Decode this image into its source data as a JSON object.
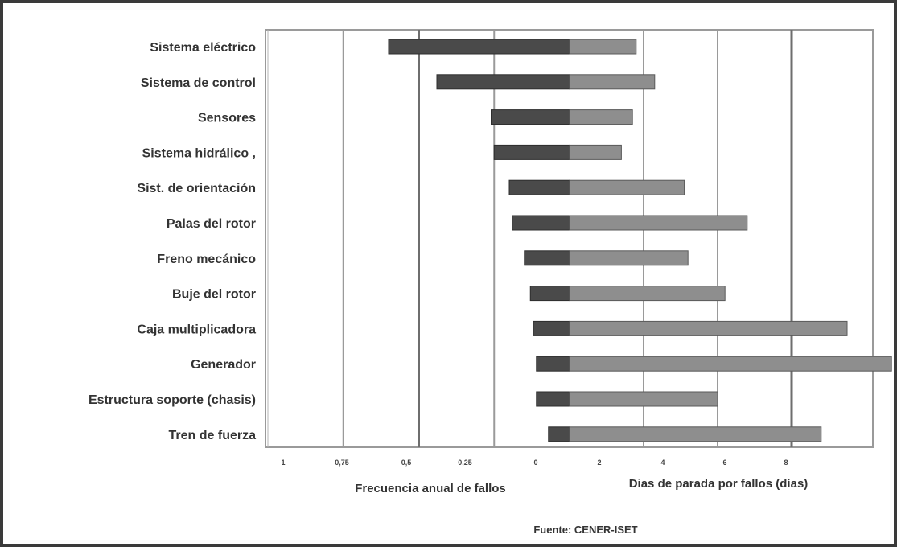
{
  "chart_data": {
    "type": "bar",
    "orientation": "horizontal",
    "categories": [
      "Sistema eléctrico",
      "Sistema de control",
      "Sensores",
      "Sistema hidrálico ,",
      "Sist. de orientación",
      "Palas del rotor",
      "Freno mecánico",
      "Buje del rotor",
      "Caja multiplicadora",
      "Generador",
      "Estructura soporte (chasis)",
      "Tren de fuerza"
    ],
    "series": [
      {
        "values": [
          0.6,
          0.44,
          0.26,
          0.25,
          0.2,
          0.19,
          0.15,
          0.13,
          0.12,
          0.11,
          0.11,
          0.07
        ],
        "color": "#4a4a4a"
      },
      {
        "values": [
          1.8,
          2.3,
          1.7,
          1.4,
          3.1,
          4.8,
          3.2,
          4.2,
          7.5,
          8.7,
          4.0,
          6.8
        ],
        "color": "#8e8e8e"
      }
    ],
    "left_axis": {
      "title": "Frecuencia anual de fallos",
      "ticks": [
        "1",
        "0,75",
        "0,5",
        "0,25",
        "0"
      ],
      "range": [
        1,
        0
      ]
    },
    "right_axis": {
      "title": "Dias de parada por fallos (días)",
      "ticks": [
        "2",
        "4",
        "6",
        "8"
      ],
      "range": [
        0,
        10
      ]
    },
    "grid": "vertical"
  },
  "source": "Fuente: CENER-ISET"
}
